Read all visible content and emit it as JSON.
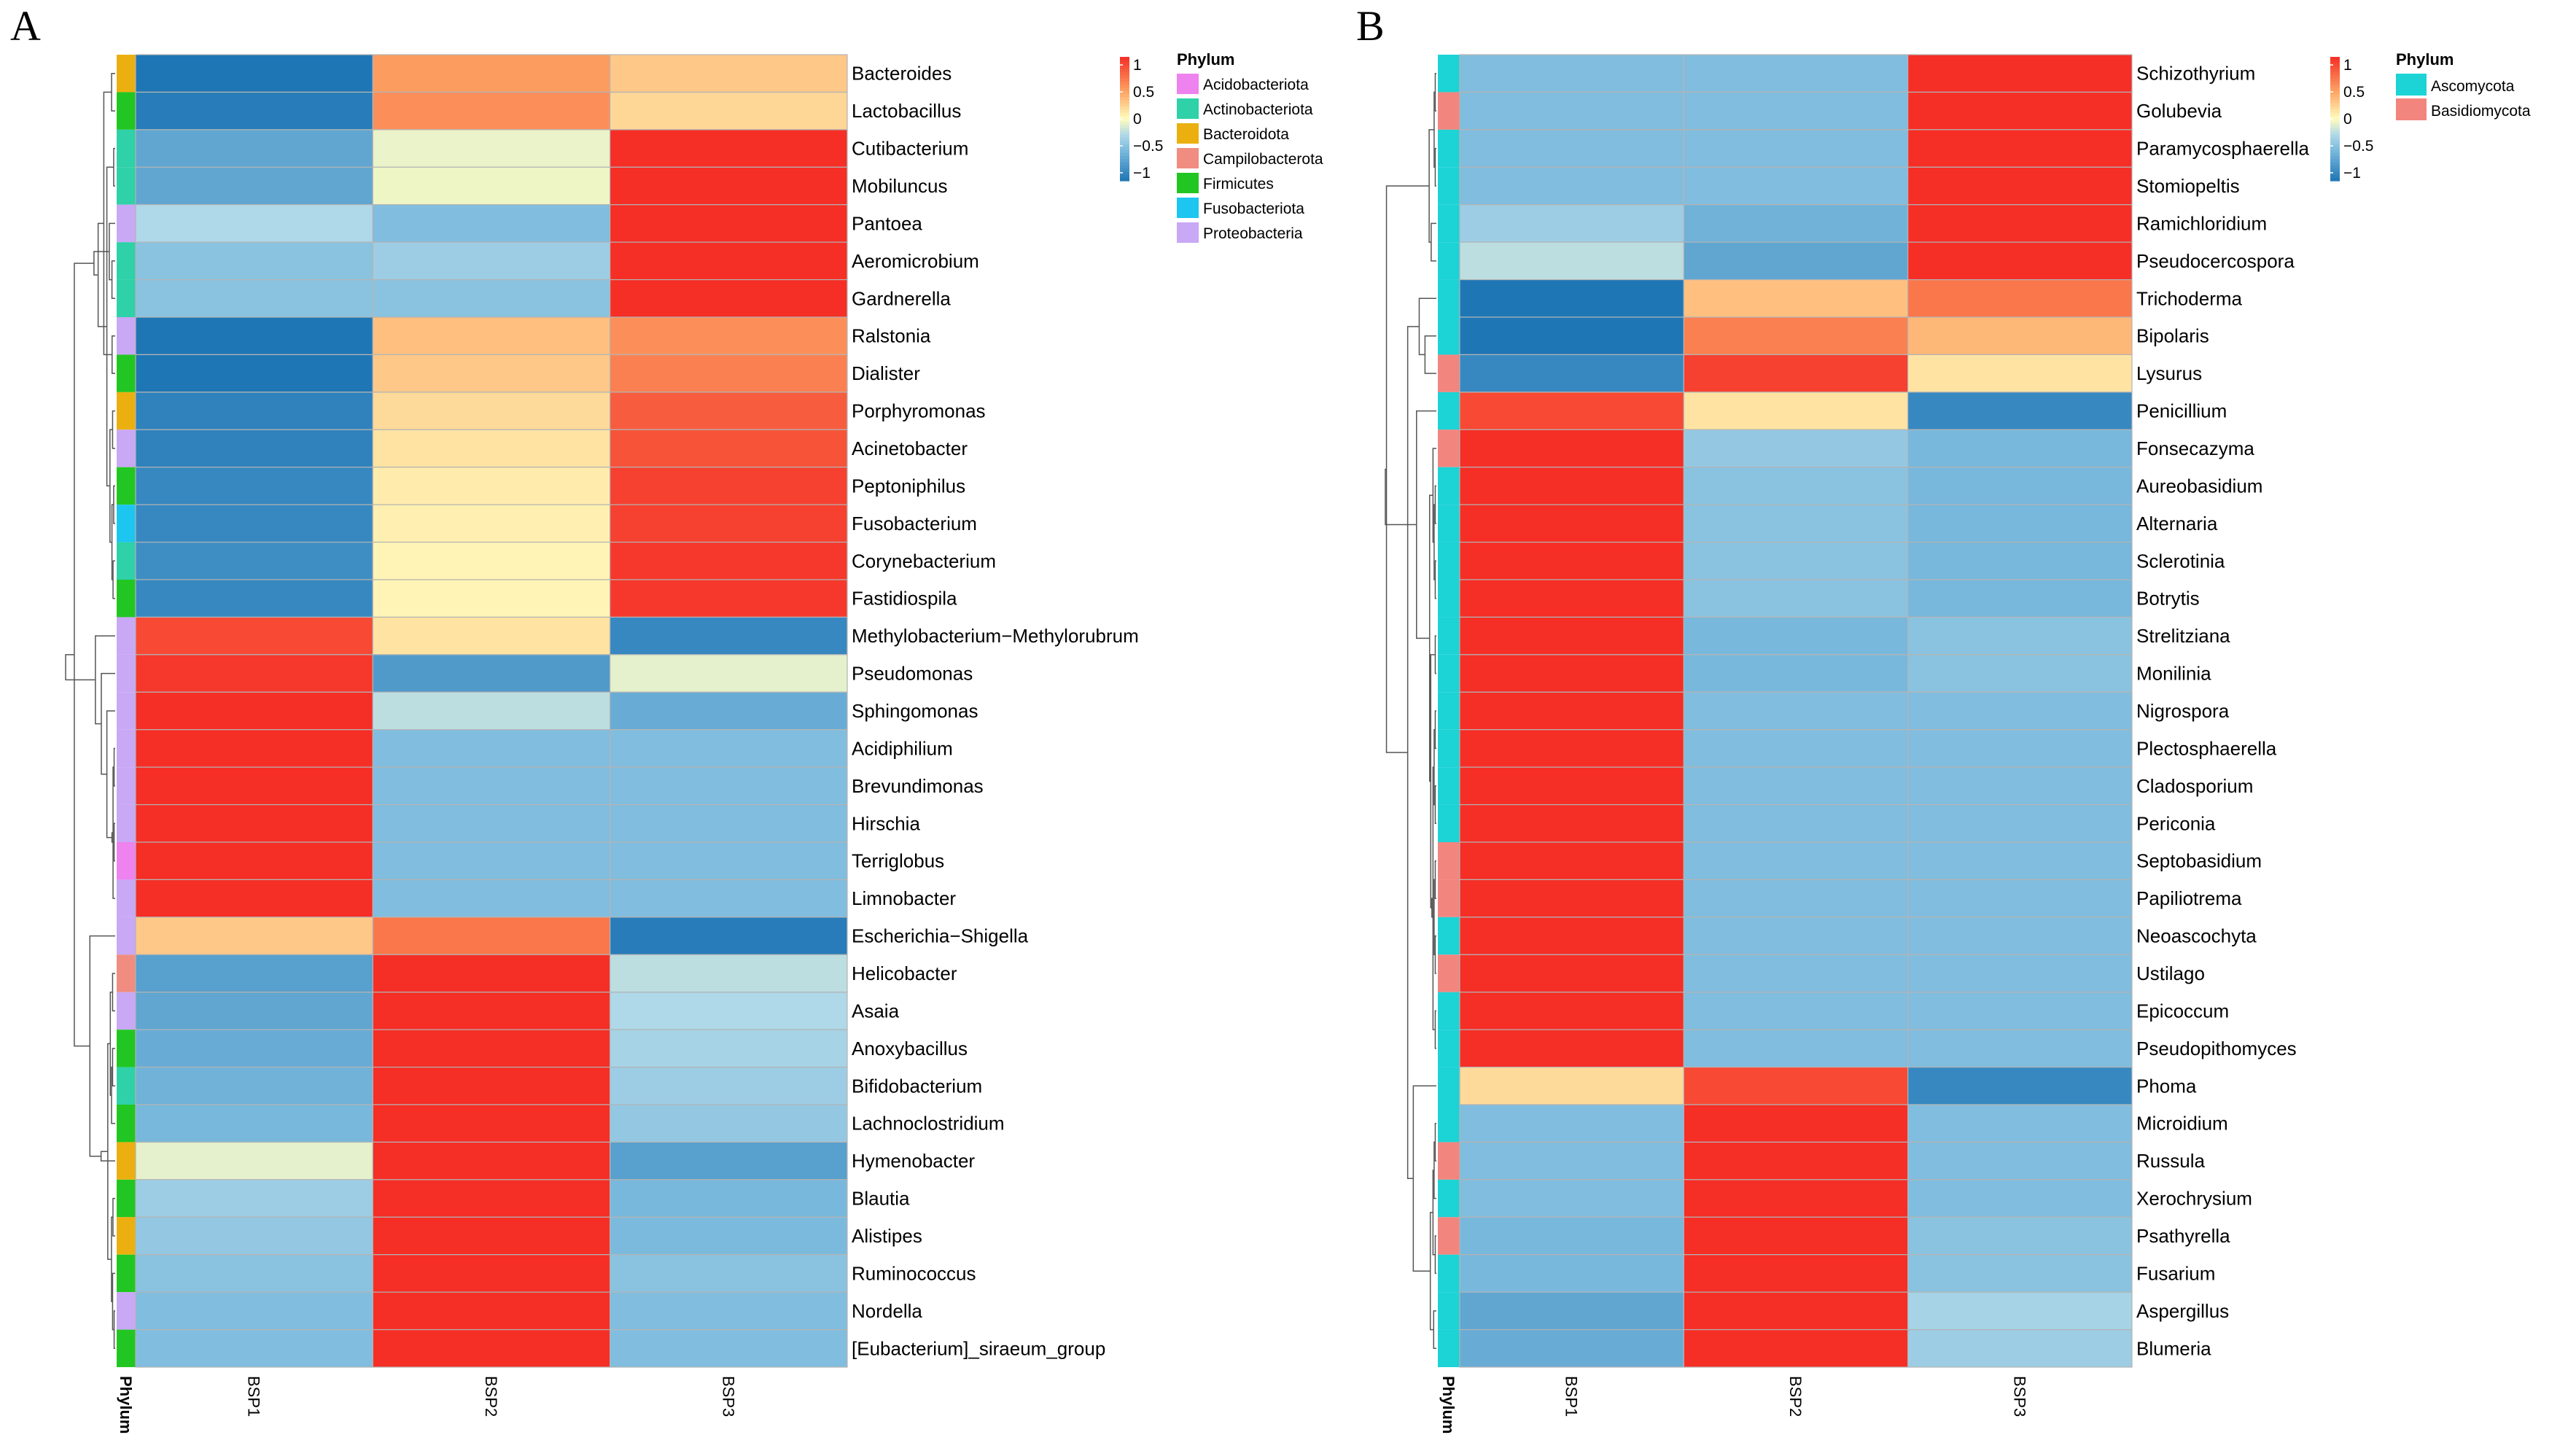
{
  "chart_data": [
    {
      "type": "heatmap",
      "panel_label": "A",
      "columns": [
        "BSP1",
        "BSP2",
        "BSP3"
      ],
      "annotation_label": "Phylum",
      "legend_title": "Phylum",
      "colorbar_ticks": [
        "1",
        "0.5",
        "0",
        "−0.5",
        "−1"
      ],
      "colorbar_range": [
        -1.15,
        1.15
      ],
      "phyla": [
        {
          "name": "Acidobacteriota",
          "color": "#EE82EE"
        },
        {
          "name": "Actinobacteriota",
          "color": "#2ED1A8"
        },
        {
          "name": "Bacteroidota",
          "color": "#EBB010"
        },
        {
          "name": "Campilobacterota",
          "color": "#F08C80"
        },
        {
          "name": "Firmicutes",
          "color": "#22C622"
        },
        {
          "name": "Fusobacteriota",
          "color": "#1CC6F0"
        },
        {
          "name": "Proteobacteria",
          "color": "#C9A8F5"
        }
      ],
      "rows": [
        {
          "label": "Bacteroides",
          "phylum": "Bacteroidota",
          "values": [
            -1.15,
            0.55,
            0.3
          ]
        },
        {
          "label": "Lactobacillus",
          "phylum": "Firmicutes",
          "values": [
            -1.1,
            0.62,
            0.22
          ]
        },
        {
          "label": "Cutibacterium",
          "phylum": "Actinobacteriota",
          "values": [
            -0.75,
            -0.08,
            1.15
          ]
        },
        {
          "label": "Mobiluncus",
          "phylum": "Actinobacteriota",
          "values": [
            -0.75,
            -0.06,
            1.15
          ]
        },
        {
          "label": "Pantoea",
          "phylum": "Proteobacteria",
          "values": [
            -0.3,
            -0.55,
            1.15
          ]
        },
        {
          "label": "Aeromicrobium",
          "phylum": "Actinobacteriota",
          "values": [
            -0.5,
            -0.4,
            1.15
          ]
        },
        {
          "label": "Gardnerella",
          "phylum": "Actinobacteriota",
          "values": [
            -0.5,
            -0.5,
            1.15
          ]
        },
        {
          "label": "Ralstonia",
          "phylum": "Proteobacteria",
          "values": [
            -1.15,
            0.35,
            0.62
          ]
        },
        {
          "label": "Dialister",
          "phylum": "Firmicutes",
          "values": [
            -1.15,
            0.3,
            0.7
          ]
        },
        {
          "label": "Porphyromonas",
          "phylum": "Bacteroidota",
          "values": [
            -1.05,
            0.2,
            0.9
          ]
        },
        {
          "label": "Acinetobacter",
          "phylum": "Proteobacteria",
          "values": [
            -1.05,
            0.15,
            0.95
          ]
        },
        {
          "label": "Peptoniphilus",
          "phylum": "Firmicutes",
          "values": [
            -1.0,
            0.1,
            1.05
          ]
        },
        {
          "label": "Fusobacterium",
          "phylum": "Fusobacteriota",
          "values": [
            -1.0,
            0.08,
            1.05
          ]
        },
        {
          "label": "Corynebacterium",
          "phylum": "Actinobacteriota",
          "values": [
            -0.95,
            0.05,
            1.1
          ]
        },
        {
          "label": "Fastidiospila",
          "phylum": "Firmicutes",
          "values": [
            -1.0,
            0.05,
            1.1
          ]
        },
        {
          "label": "Methylobacterium−Methylorubrum",
          "phylum": "Proteobacteria",
          "values": [
            1.0,
            0.15,
            -1.0
          ]
        },
        {
          "label": "Pseudomonas",
          "phylum": "Proteobacteria",
          "values": [
            1.1,
            -0.85,
            -0.1
          ]
        },
        {
          "label": "Sphingomonas",
          "phylum": "Proteobacteria",
          "values": [
            1.15,
            -0.25,
            -0.7
          ]
        },
        {
          "label": "Acidiphilium",
          "phylum": "Proteobacteria",
          "values": [
            1.15,
            -0.55,
            -0.55
          ]
        },
        {
          "label": "Brevundimonas",
          "phylum": "Proteobacteria",
          "values": [
            1.15,
            -0.55,
            -0.55
          ]
        },
        {
          "label": "Hirschia",
          "phylum": "Proteobacteria",
          "values": [
            1.15,
            -0.55,
            -0.55
          ]
        },
        {
          "label": "Terriglobus",
          "phylum": "Acidobacteriota",
          "values": [
            1.15,
            -0.55,
            -0.55
          ]
        },
        {
          "label": "Limnobacter",
          "phylum": "Proteobacteria",
          "values": [
            1.15,
            -0.55,
            -0.55
          ]
        },
        {
          "label": "Escherichia−Shigella",
          "phylum": "Proteobacteria",
          "values": [
            0.3,
            0.75,
            -1.1
          ]
        },
        {
          "label": "Helicobacter",
          "phylum": "Campilobacterota",
          "values": [
            -0.8,
            1.15,
            -0.25
          ]
        },
        {
          "label": "Asaia",
          "phylum": "Proteobacteria",
          "values": [
            -0.75,
            1.15,
            -0.3
          ]
        },
        {
          "label": "Anoxybacillus",
          "phylum": "Firmicutes",
          "values": [
            -0.7,
            1.15,
            -0.35
          ]
        },
        {
          "label": "Bifidobacterium",
          "phylum": "Actinobacteriota",
          "values": [
            -0.65,
            1.15,
            -0.4
          ]
        },
        {
          "label": "Lachnoclostridium",
          "phylum": "Firmicutes",
          "values": [
            -0.6,
            1.15,
            -0.45
          ]
        },
        {
          "label": "Hymenobacter",
          "phylum": "Bacteroidota",
          "values": [
            -0.1,
            1.15,
            -0.8
          ]
        },
        {
          "label": "Blautia",
          "phylum": "Firmicutes",
          "values": [
            -0.4,
            1.15,
            -0.6
          ]
        },
        {
          "label": "Alistipes",
          "phylum": "Bacteroidota",
          "values": [
            -0.45,
            1.15,
            -0.58
          ]
        },
        {
          "label": "Ruminococcus",
          "phylum": "Firmicutes",
          "values": [
            -0.5,
            1.15,
            -0.5
          ]
        },
        {
          "label": "Nordella",
          "phylum": "Proteobacteria",
          "values": [
            -0.55,
            1.15,
            -0.55
          ]
        },
        {
          "label": "[Eubacterium]_siraeum_group",
          "phylum": "Firmicutes",
          "values": [
            -0.55,
            1.15,
            -0.55
          ]
        }
      ]
    },
    {
      "type": "heatmap",
      "panel_label": "B",
      "columns": [
        "BSP1",
        "BSP2",
        "BSP3"
      ],
      "annotation_label": "Phylum",
      "legend_title": "Phylum",
      "colorbar_ticks": [
        "1",
        "0.5",
        "0",
        "−0.5",
        "−1"
      ],
      "colorbar_range": [
        -1.15,
        1.15
      ],
      "phyla": [
        {
          "name": "Ascomycota",
          "color": "#1CD3D6"
        },
        {
          "name": "Basidiomycota",
          "color": "#F2857E"
        }
      ],
      "rows": [
        {
          "label": "Schizothyrium",
          "phylum": "Ascomycota",
          "values": [
            -0.55,
            -0.55,
            1.15
          ]
        },
        {
          "label": "Golubevia",
          "phylum": "Basidiomycota",
          "values": [
            -0.55,
            -0.55,
            1.15
          ]
        },
        {
          "label": "Paramycosphaerella",
          "phylum": "Ascomycota",
          "values": [
            -0.55,
            -0.55,
            1.15
          ]
        },
        {
          "label": "Stomiopeltis",
          "phylum": "Ascomycota",
          "values": [
            -0.55,
            -0.55,
            1.15
          ]
        },
        {
          "label": "Ramichloridium",
          "phylum": "Ascomycota",
          "values": [
            -0.4,
            -0.65,
            1.15
          ]
        },
        {
          "label": "Pseudocercospora",
          "phylum": "Ascomycota",
          "values": [
            -0.25,
            -0.75,
            1.15
          ]
        },
        {
          "label": "Trichoderma",
          "phylum": "Ascomycota",
          "values": [
            -1.15,
            0.35,
            0.75
          ]
        },
        {
          "label": "Bipolaris",
          "phylum": "Ascomycota",
          "values": [
            -1.15,
            0.7,
            0.4
          ]
        },
        {
          "label": "Lysurus",
          "phylum": "Basidiomycota",
          "values": [
            -1.0,
            1.05,
            0.15
          ]
        },
        {
          "label": "Penicillium",
          "phylum": "Ascomycota",
          "values": [
            1.0,
            0.15,
            -1.0
          ]
        },
        {
          "label": "Fonsecazyma",
          "phylum": "Basidiomycota",
          "values": [
            1.15,
            -0.45,
            -0.6
          ]
        },
        {
          "label": "Aureobasidium",
          "phylum": "Ascomycota",
          "values": [
            1.15,
            -0.5,
            -0.6
          ]
        },
        {
          "label": "Alternaria",
          "phylum": "Ascomycota",
          "values": [
            1.15,
            -0.5,
            -0.6
          ]
        },
        {
          "label": "Sclerotinia",
          "phylum": "Ascomycota",
          "values": [
            1.15,
            -0.5,
            -0.6
          ]
        },
        {
          "label": "Botrytis",
          "phylum": "Ascomycota",
          "values": [
            1.15,
            -0.5,
            -0.6
          ]
        },
        {
          "label": "Strelitziana",
          "phylum": "Ascomycota",
          "values": [
            1.15,
            -0.6,
            -0.5
          ]
        },
        {
          "label": "Monilinia",
          "phylum": "Ascomycota",
          "values": [
            1.15,
            -0.6,
            -0.5
          ]
        },
        {
          "label": "Nigrospora",
          "phylum": "Ascomycota",
          "values": [
            1.15,
            -0.55,
            -0.55
          ]
        },
        {
          "label": "Plectosphaerella",
          "phylum": "Ascomycota",
          "values": [
            1.15,
            -0.55,
            -0.55
          ]
        },
        {
          "label": "Cladosporium",
          "phylum": "Ascomycota",
          "values": [
            1.15,
            -0.55,
            -0.55
          ]
        },
        {
          "label": "Periconia",
          "phylum": "Ascomycota",
          "values": [
            1.15,
            -0.55,
            -0.55
          ]
        },
        {
          "label": "Septobasidium",
          "phylum": "Basidiomycota",
          "values": [
            1.15,
            -0.55,
            -0.55
          ]
        },
        {
          "label": "Papiliotrema",
          "phylum": "Basidiomycota",
          "values": [
            1.15,
            -0.55,
            -0.55
          ]
        },
        {
          "label": "Neoascochyta",
          "phylum": "Ascomycota",
          "values": [
            1.15,
            -0.55,
            -0.55
          ]
        },
        {
          "label": "Ustilago",
          "phylum": "Basidiomycota",
          "values": [
            1.15,
            -0.55,
            -0.55
          ]
        },
        {
          "label": "Epicoccum",
          "phylum": "Ascomycota",
          "values": [
            1.15,
            -0.55,
            -0.55
          ]
        },
        {
          "label": "Pseudopithomyces",
          "phylum": "Ascomycota",
          "values": [
            1.15,
            -0.55,
            -0.55
          ]
        },
        {
          "label": "Phoma",
          "phylum": "Ascomycota",
          "values": [
            0.2,
            1.0,
            -1.0
          ]
        },
        {
          "label": "Microidium",
          "phylum": "Ascomycota",
          "values": [
            -0.55,
            1.15,
            -0.55
          ]
        },
        {
          "label": "Russula",
          "phylum": "Basidiomycota",
          "values": [
            -0.55,
            1.15,
            -0.55
          ]
        },
        {
          "label": "Xerochrysium",
          "phylum": "Ascomycota",
          "values": [
            -0.55,
            1.15,
            -0.55
          ]
        },
        {
          "label": "Psathyrella",
          "phylum": "Basidiomycota",
          "values": [
            -0.6,
            1.15,
            -0.5
          ]
        },
        {
          "label": "Fusarium",
          "phylum": "Ascomycota",
          "values": [
            -0.6,
            1.15,
            -0.5
          ]
        },
        {
          "label": "Aspergillus",
          "phylum": "Ascomycota",
          "values": [
            -0.75,
            1.15,
            -0.35
          ]
        },
        {
          "label": "Blumeria",
          "phylum": "Ascomycota",
          "values": [
            -0.7,
            1.15,
            -0.4
          ]
        }
      ]
    }
  ]
}
